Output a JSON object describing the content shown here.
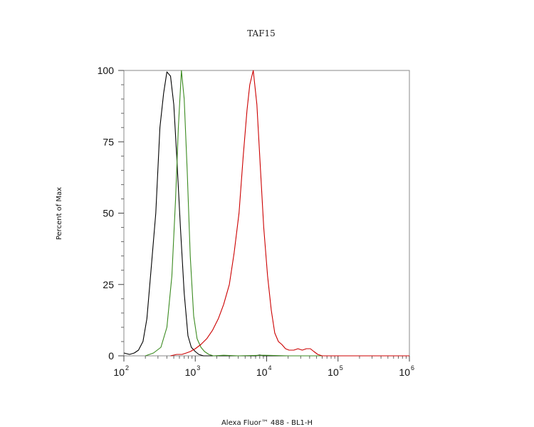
{
  "chart_data": {
    "type": "line",
    "title": "TAF15",
    "xlabel": "Alexa Fluor™ 488 - BL1-H",
    "ylabel": "Percent of Max",
    "x_scale": "log",
    "xlim": [
      100,
      1000000
    ],
    "ylim": [
      0,
      100
    ],
    "y_ticks": [
      {
        "value": 0,
        "label": "0"
      },
      {
        "value": 25,
        "label": "25"
      },
      {
        "value": 50,
        "label": "50"
      },
      {
        "value": 75,
        "label": "75"
      },
      {
        "value": 100,
        "label": "100"
      }
    ],
    "x_ticks": [
      {
        "value": 100,
        "base": "10",
        "exp": "2"
      },
      {
        "value": 1000,
        "base": "10",
        "exp": "3"
      },
      {
        "value": 10000,
        "base": "10",
        "exp": "4"
      },
      {
        "value": 100000,
        "base": "10",
        "exp": "5"
      },
      {
        "value": 1000000,
        "base": "10",
        "exp": "6"
      }
    ],
    "grid": false,
    "legend": "none",
    "series": [
      {
        "color": "#000000",
        "points": [
          [
            100,
            1
          ],
          [
            120,
            0.5
          ],
          [
            140,
            1
          ],
          [
            160,
            2
          ],
          [
            185,
            5
          ],
          [
            210,
            13
          ],
          [
            240,
            30
          ],
          [
            280,
            50
          ],
          [
            320,
            80
          ],
          [
            360,
            92
          ],
          [
            400,
            99.5
          ],
          [
            450,
            98
          ],
          [
            500,
            88
          ],
          [
            550,
            70
          ],
          [
            620,
            45
          ],
          [
            700,
            22
          ],
          [
            790,
            7
          ],
          [
            880,
            3
          ],
          [
            1000,
            1.5
          ],
          [
            1120,
            0.5
          ],
          [
            1300,
            0
          ],
          [
            1600,
            0
          ],
          [
            3000,
            0
          ],
          [
            7000,
            0
          ],
          [
            8000,
            0.3
          ],
          [
            9000,
            0
          ],
          [
            20000,
            0
          ],
          [
            100000,
            0
          ],
          [
            1000000,
            0
          ]
        ]
      },
      {
        "color": "#3a8a1f",
        "points": [
          [
            200,
            0
          ],
          [
            260,
            1
          ],
          [
            330,
            3
          ],
          [
            400,
            10
          ],
          [
            470,
            28
          ],
          [
            530,
            55
          ],
          [
            580,
            80
          ],
          [
            640,
            100
          ],
          [
            700,
            90
          ],
          [
            770,
            65
          ],
          [
            850,
            35
          ],
          [
            950,
            14
          ],
          [
            1060,
            6
          ],
          [
            1200,
            3
          ],
          [
            1350,
            1.5
          ],
          [
            1550,
            0.5
          ],
          [
            1800,
            0
          ],
          [
            2500,
            0.2
          ],
          [
            4000,
            0
          ],
          [
            9000,
            0.2
          ],
          [
            20000,
            0
          ],
          [
            100000,
            0
          ],
          [
            1000000,
            0
          ]
        ]
      },
      {
        "color": "#cc0000",
        "points": [
          [
            450,
            0
          ],
          [
            550,
            0.5
          ],
          [
            650,
            0.5
          ],
          [
            750,
            1
          ],
          [
            850,
            1.5
          ],
          [
            1000,
            2.5
          ],
          [
            1200,
            4
          ],
          [
            1450,
            6
          ],
          [
            1750,
            9
          ],
          [
            2100,
            13
          ],
          [
            2500,
            18
          ],
          [
            3000,
            25
          ],
          [
            3500,
            36
          ],
          [
            4100,
            50
          ],
          [
            4700,
            70
          ],
          [
            5300,
            86
          ],
          [
            5800,
            95
          ],
          [
            6500,
            100
          ],
          [
            7300,
            88
          ],
          [
            8200,
            65
          ],
          [
            9100,
            45
          ],
          [
            10300,
            28
          ],
          [
            11600,
            16
          ],
          [
            13000,
            8
          ],
          [
            14600,
            5
          ],
          [
            16300,
            4
          ],
          [
            18400,
            2.5
          ],
          [
            20600,
            2
          ],
          [
            24000,
            2
          ],
          [
            27500,
            2.5
          ],
          [
            31500,
            2
          ],
          [
            36000,
            2.5
          ],
          [
            41000,
            2.5
          ],
          [
            46000,
            1.5
          ],
          [
            52000,
            0.5
          ],
          [
            60000,
            0
          ],
          [
            80000,
            0
          ],
          [
            200000,
            0
          ],
          [
            1000000,
            0
          ]
        ]
      }
    ]
  }
}
